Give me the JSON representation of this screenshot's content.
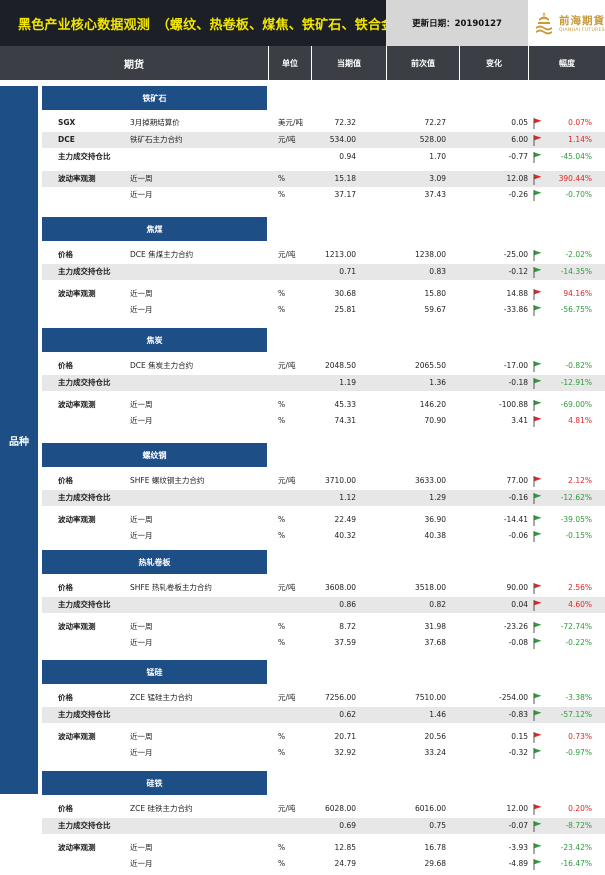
{
  "header": {
    "title": "黑色产业核心数据观测　（螺纹、热卷板、煤焦、铁矿石、铁合金）",
    "date_label": "更新日期：20190127",
    "logo_cn": "前海期貨",
    "logo_en": "QIANHAI FUTURES"
  },
  "columns": {
    "futures": "期货",
    "unit": "单位",
    "current": "当期值",
    "previous": "前次值",
    "change": "变化",
    "rate": "幅度"
  },
  "side_label": "品种",
  "colors": {
    "up": "#e02424",
    "down": "#2e9b3c",
    "section": "#1e4e86",
    "header_bar": "#3b3e45"
  },
  "sections": [
    {
      "title": "铁矿石",
      "rows": [
        {
          "k": "SGX",
          "n": "3月掉期结算价",
          "u": "美元/吨",
          "cur": "72.32",
          "prev": "72.27",
          "chg": "0.05",
          "rate": "0.07%",
          "dir": "up",
          "shaded": false
        },
        {
          "k": "DCE",
          "n": "铁矿石主力合约",
          "u": "元/吨",
          "cur": "534.00",
          "prev": "528.00",
          "chg": "6.00",
          "rate": "1.14%",
          "dir": "up",
          "shaded": true
        },
        {
          "k": "主力成交持仓比",
          "n": "",
          "u": "",
          "cur": "0.94",
          "prev": "1.70",
          "chg": "-0.77",
          "rate": "-45.04%",
          "dir": "down",
          "shaded": false
        },
        {
          "k": "波动率观测",
          "n": "近一周",
          "u": "%",
          "cur": "15.18",
          "prev": "3.09",
          "chg": "12.08",
          "rate": "390.44%",
          "dir": "up",
          "shaded": true
        },
        {
          "k": "",
          "n": "近一月",
          "u": "%",
          "cur": "37.17",
          "prev": "37.43",
          "chg": "-0.26",
          "rate": "-0.70%",
          "dir": "down",
          "shaded": false
        }
      ]
    },
    {
      "title": "焦煤",
      "rows": [
        {
          "k": "价格",
          "n": "DCE 焦煤主力合约",
          "u": "元/吨",
          "cur": "1213.00",
          "prev": "1238.00",
          "chg": "-25.00",
          "rate": "-2.02%",
          "dir": "down",
          "shaded": false
        },
        {
          "k": "主力成交持仓比",
          "n": "",
          "u": "",
          "cur": "0.71",
          "prev": "0.83",
          "chg": "-0.12",
          "rate": "-14.35%",
          "dir": "down",
          "shaded": true
        },
        {
          "k": "波动率观测",
          "n": "近一周",
          "u": "%",
          "cur": "30.68",
          "prev": "15.80",
          "chg": "14.88",
          "rate": "94.16%",
          "dir": "up",
          "shaded": false
        },
        {
          "k": "",
          "n": "近一月",
          "u": "%",
          "cur": "25.81",
          "prev": "59.67",
          "chg": "-33.86",
          "rate": "-56.75%",
          "dir": "down",
          "shaded": false
        }
      ]
    },
    {
      "title": "焦炭",
      "rows": [
        {
          "k": "价格",
          "n": "DCE  焦炭主力合约",
          "u": "元/吨",
          "cur": "2048.50",
          "prev": "2065.50",
          "chg": "-17.00",
          "rate": "-0.82%",
          "dir": "down",
          "shaded": false
        },
        {
          "k": "主力成交持仓比",
          "n": "",
          "u": "",
          "cur": "1.19",
          "prev": "1.36",
          "chg": "-0.18",
          "rate": "-12.91%",
          "dir": "down",
          "shaded": true
        },
        {
          "k": "波动率观测",
          "n": "近一周",
          "u": "%",
          "cur": "45.33",
          "prev": "146.20",
          "chg": "-100.88",
          "rate": "-69.00%",
          "dir": "down",
          "shaded": false
        },
        {
          "k": "",
          "n": "近一月",
          "u": "%",
          "cur": "74.31",
          "prev": "70.90",
          "chg": "3.41",
          "rate": "4.81%",
          "dir": "up",
          "shaded": false
        }
      ]
    },
    {
      "title": "螺纹钢",
      "rows": [
        {
          "k": "价格",
          "n": "SHFE 螺纹钢主力合约",
          "u": "元/吨",
          "cur": "3710.00",
          "prev": "3633.00",
          "chg": "77.00",
          "rate": "2.12%",
          "dir": "up",
          "shaded": false
        },
        {
          "k": "主力成交持仓比",
          "n": "",
          "u": "",
          "cur": "1.12",
          "prev": "1.29",
          "chg": "-0.16",
          "rate": "-12.62%",
          "dir": "down",
          "shaded": true
        },
        {
          "k": "波动率观测",
          "n": "近一周",
          "u": "%",
          "cur": "22.49",
          "prev": "36.90",
          "chg": "-14.41",
          "rate": "-39.05%",
          "dir": "down",
          "shaded": false
        },
        {
          "k": "",
          "n": "近一月",
          "u": "%",
          "cur": "40.32",
          "prev": "40.38",
          "chg": "-0.06",
          "rate": "-0.15%",
          "dir": "down",
          "shaded": false
        }
      ]
    },
    {
      "title": "热轧卷板",
      "rows": [
        {
          "k": "价格",
          "n": "SHFE 热轧卷板主力合约",
          "u": "元/吨",
          "cur": "3608.00",
          "prev": "3518.00",
          "chg": "90.00",
          "rate": "2.56%",
          "dir": "up",
          "shaded": false
        },
        {
          "k": "主力成交持仓比",
          "n": "",
          "u": "",
          "cur": "0.86",
          "prev": "0.82",
          "chg": "0.04",
          "rate": "4.60%",
          "dir": "up",
          "shaded": true
        },
        {
          "k": "波动率观测",
          "n": "近一周",
          "u": "%",
          "cur": "8.72",
          "prev": "31.98",
          "chg": "-23.26",
          "rate": "-72.74%",
          "dir": "down",
          "shaded": false
        },
        {
          "k": "",
          "n": "近一月",
          "u": "%",
          "cur": "37.59",
          "prev": "37.68",
          "chg": "-0.08",
          "rate": "-0.22%",
          "dir": "down",
          "shaded": false
        }
      ]
    },
    {
      "title": "锰硅",
      "rows": [
        {
          "k": "价格",
          "n": "ZCE 锰硅主力合约",
          "u": "元/吨",
          "cur": "7256.00",
          "prev": "7510.00",
          "chg": "-254.00",
          "rate": "-3.38%",
          "dir": "down",
          "shaded": false
        },
        {
          "k": "主力成交持仓比",
          "n": "",
          "u": "",
          "cur": "0.62",
          "prev": "1.46",
          "chg": "-0.83",
          "rate": "-57.12%",
          "dir": "down",
          "shaded": true
        },
        {
          "k": "波动率观测",
          "n": "近一周",
          "u": "%",
          "cur": "20.71",
          "prev": "20.56",
          "chg": "0.15",
          "rate": "0.73%",
          "dir": "up",
          "shaded": false
        },
        {
          "k": "",
          "n": "近一月",
          "u": "%",
          "cur": "32.92",
          "prev": "33.24",
          "chg": "-0.32",
          "rate": "-0.97%",
          "dir": "down",
          "shaded": false
        }
      ]
    },
    {
      "title": "硅铁",
      "rows": [
        {
          "k": "价格",
          "n": "ZCE 硅铁主力合约",
          "u": "元/吨",
          "cur": "6028.00",
          "prev": "6016.00",
          "chg": "12.00",
          "rate": "0.20%",
          "dir": "up",
          "shaded": false
        },
        {
          "k": "主力成交持仓比",
          "n": "",
          "u": "",
          "cur": "0.69",
          "prev": "0.75",
          "chg": "-0.07",
          "rate": "-8.72%",
          "dir": "down",
          "shaded": true
        },
        {
          "k": "波动率观测",
          "n": "近一周",
          "u": "%",
          "cur": "12.85",
          "prev": "16.78",
          "chg": "-3.93",
          "rate": "-23.42%",
          "dir": "down",
          "shaded": false
        },
        {
          "k": "",
          "n": "近一月",
          "u": "%",
          "cur": "24.79",
          "prev": "29.68",
          "chg": "-4.89",
          "rate": "-16.47%",
          "dir": "down",
          "shaded": false
        }
      ]
    }
  ]
}
